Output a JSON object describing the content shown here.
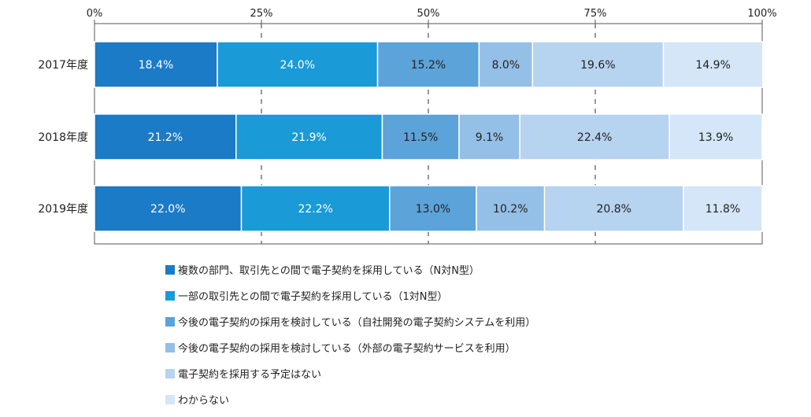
{
  "chart_data": {
    "type": "bar",
    "orientation": "horizontal",
    "stacked": true,
    "percent_stacked": true,
    "categories": [
      "2017年度",
      "2018年度",
      "2019年度"
    ],
    "series": [
      {
        "name": "複数の部門、取引先との間で電子契約を採用している（N対N型）",
        "values": [
          18.4,
          21.2,
          22.0
        ],
        "labels": [
          "18.4%",
          "21.2%",
          "22.0%"
        ],
        "color": "#1b7bc6",
        "label_color": "#ffffff"
      },
      {
        "name": "一部の取引先との間で電子契約を採用している（1対N型）",
        "values": [
          24.0,
          21.9,
          22.2
        ],
        "labels": [
          "24.0%",
          "21.9%",
          "22.2%"
        ],
        "color": "#1a9ad6",
        "label_color": "#ffffff"
      },
      {
        "name": "今後の電子契約の採用を検討している（自社開発の電子契約システムを利用）",
        "values": [
          15.2,
          11.5,
          13.0
        ],
        "labels": [
          "15.2%",
          "11.5%",
          "13.0%"
        ],
        "color": "#5ba3d9",
        "label_color": "#222222"
      },
      {
        "name": "今後の電子契約の採用を検討している（外部の電子契約サービスを利用）",
        "values": [
          8.0,
          9.1,
          10.2
        ],
        "labels": [
          "8.0%",
          "9.1%",
          "10.2%"
        ],
        "color": "#94bfe6",
        "label_color": "#222222"
      },
      {
        "name": "電子契約を採用する予定はない",
        "values": [
          19.6,
          22.4,
          20.8
        ],
        "labels": [
          "19.6%",
          "22.4%",
          "20.8%"
        ],
        "color": "#b6d3ef",
        "label_color": "#222222"
      },
      {
        "name": "わからない",
        "values": [
          14.9,
          13.9,
          11.8
        ],
        "labels": [
          "14.9%",
          "13.9%",
          "11.8%"
        ],
        "color": "#d4e6f7",
        "label_color": "#222222"
      }
    ],
    "x_ticks": [
      "0%",
      "25%",
      "50%",
      "75%",
      "100%"
    ],
    "xlim": [
      0,
      100
    ],
    "grid": "dashed vertical at 25/50/75",
    "legend_position": "bottom"
  }
}
